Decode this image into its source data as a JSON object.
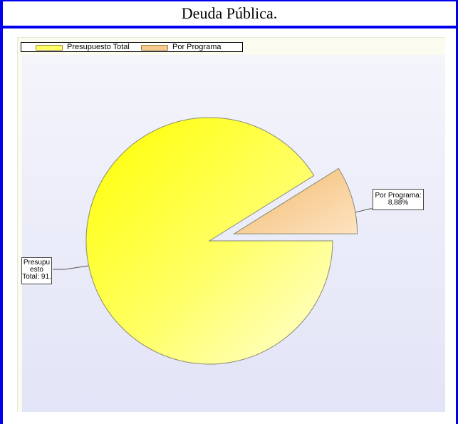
{
  "header": {
    "title": "Deuda Pública."
  },
  "legend": {
    "items": [
      {
        "label": "Presupuesto Total",
        "color": "#ffff66"
      },
      {
        "label": "Por Programa",
        "color": "#f8c98c"
      }
    ]
  },
  "labels": {
    "total_line1": "Presupu",
    "total_line2": "esto",
    "total_line3": "Total: 91.",
    "programa_line1": "Por Programa:",
    "programa_line2": "8,88%"
  },
  "chart_data": {
    "type": "pie",
    "categories": [
      "Presupuesto Total",
      "Por Programa"
    ],
    "values": [
      91.12,
      8.88
    ],
    "colors": [
      "#ffff66",
      "#f8c98c"
    ],
    "exploded": [
      "Por Programa"
    ],
    "legend": "top-left",
    "grid": false
  }
}
